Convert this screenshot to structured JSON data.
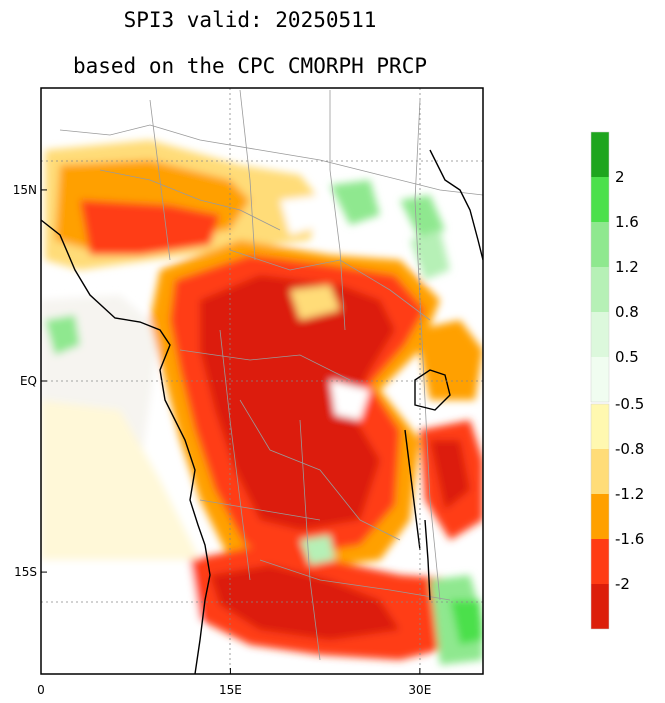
{
  "title": {
    "line1": "SPI3   valid: 20250511",
    "line2": "based on the CPC CMORPH PRCP"
  },
  "map": {
    "region": "Central Africa",
    "lon_range": [
      0,
      35
    ],
    "lat_range": [
      -23,
      23
    ],
    "x_ticks": [
      {
        "value": 0,
        "label": "0"
      },
      {
        "value": 15,
        "label": "15E"
      },
      {
        "value": 30,
        "label": "30E"
      }
    ],
    "y_ticks": [
      {
        "value": 15,
        "label": "15N"
      },
      {
        "value": 0,
        "label": "EQ"
      },
      {
        "value": -15,
        "label": "15S"
      }
    ],
    "gridlines": "dotted"
  },
  "colorbar_wet": {
    "colors": [
      "#1ea51e",
      "#4ce04c",
      "#8fe88f",
      "#b6f0b6",
      "#dcf8dc",
      "#f0fdf0"
    ],
    "labels": [
      "2",
      "1.6",
      "1.2",
      "0.8",
      "0.5"
    ]
  },
  "colorbar_dry": {
    "colors": [
      "#fff8b0",
      "#ffdc78",
      "#ffa000",
      "#ff3c14",
      "#dc1e0a"
    ],
    "labels": [
      "-0.5",
      "-0.8",
      "-1.2",
      "-1.6",
      "-2"
    ]
  }
}
